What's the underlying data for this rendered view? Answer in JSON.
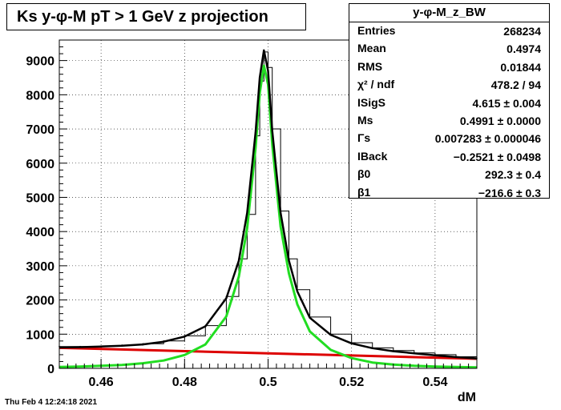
{
  "title": "Ks y-φ-M pT > 1 GeV z projection",
  "footer": "Thu Feb  4 12:24:18 2021",
  "stats": {
    "name": "y-φ-M_z_BW",
    "rows": [
      {
        "label": "Entries",
        "value": "268234"
      },
      {
        "label": "Mean",
        "value": "0.4974"
      },
      {
        "label": "RMS",
        "value": "0.01844"
      },
      {
        "label": "χ² / ndf",
        "value": "478.2 / 94"
      },
      {
        "label": "ISigS",
        "value": "4.615 ± 0.004"
      },
      {
        "label": "Ms",
        "value": "0.4991 ± 0.0000"
      },
      {
        "label": "Γs",
        "value": "0.007283 ± 0.000046"
      },
      {
        "label": "IBack",
        "value": "−0.2521 ± 0.0498"
      },
      {
        "label": "β0",
        "value": "292.3 ± 0.4"
      },
      {
        "label": "β1",
        "value": "−216.6 ± 0.3"
      }
    ]
  },
  "chart_data": {
    "type": "line",
    "xlabel": "dM",
    "ylabel": "",
    "xlim": [
      0.45,
      0.55
    ],
    "ylim": [
      0,
      9600
    ],
    "grid": true,
    "x_ticks": [
      "0.46",
      "0.48",
      "0.5",
      "0.52",
      "0.54"
    ],
    "y_ticks": [
      "0",
      "1000",
      "2000",
      "3000",
      "4000",
      "5000",
      "6000",
      "7000",
      "8000",
      "9000"
    ],
    "colors": {
      "histogram": "#000000",
      "total_fit": "#000000",
      "signal": "#22dd22",
      "background": "#dd0000"
    },
    "series": [
      {
        "role": "histogram",
        "x": [
          0.45,
          0.455,
          0.46,
          0.465,
          0.47,
          0.475,
          0.48,
          0.485,
          0.49,
          0.493,
          0.495,
          0.497,
          0.498,
          0.499,
          0.5,
          0.501,
          0.503,
          0.505,
          0.507,
          0.51,
          0.515,
          0.52,
          0.525,
          0.53,
          0.535,
          0.54,
          0.545,
          0.55
        ],
        "y": [
          640,
          640,
          650,
          680,
          720,
          800,
          950,
          1250,
          2100,
          3200,
          4500,
          6800,
          8400,
          9250,
          8800,
          7000,
          4600,
          3200,
          2300,
          1500,
          1000,
          750,
          600,
          520,
          450,
          400,
          340,
          300
        ]
      },
      {
        "role": "total_fit",
        "x": [
          0.45,
          0.455,
          0.46,
          0.465,
          0.47,
          0.475,
          0.48,
          0.485,
          0.49,
          0.493,
          0.495,
          0.497,
          0.498,
          0.499,
          0.5,
          0.501,
          0.503,
          0.505,
          0.507,
          0.51,
          0.515,
          0.52,
          0.525,
          0.53,
          0.535,
          0.54,
          0.545,
          0.55
        ],
        "y": [
          610,
          620,
          640,
          660,
          700,
          780,
          930,
          1230,
          2050,
          3150,
          4550,
          6900,
          8500,
          9300,
          8700,
          6950,
          4550,
          3150,
          2250,
          1480,
          980,
          730,
          590,
          500,
          440,
          380,
          330,
          290
        ]
      },
      {
        "role": "signal",
        "x": [
          0.45,
          0.455,
          0.46,
          0.465,
          0.47,
          0.475,
          0.48,
          0.485,
          0.49,
          0.493,
          0.495,
          0.497,
          0.498,
          0.499,
          0.5,
          0.501,
          0.503,
          0.505,
          0.507,
          0.51,
          0.515,
          0.52,
          0.525,
          0.53,
          0.535,
          0.54,
          0.545,
          0.55
        ],
        "y": [
          40,
          55,
          75,
          100,
          150,
          230,
          390,
          700,
          1520,
          2680,
          4100,
          6450,
          8050,
          8850,
          8300,
          6550,
          4150,
          2780,
          1870,
          1080,
          540,
          300,
          170,
          110,
          75,
          55,
          40,
          30
        ]
      },
      {
        "role": "background",
        "x": [
          0.45,
          0.55
        ],
        "y": [
          600,
          280
        ]
      }
    ]
  }
}
